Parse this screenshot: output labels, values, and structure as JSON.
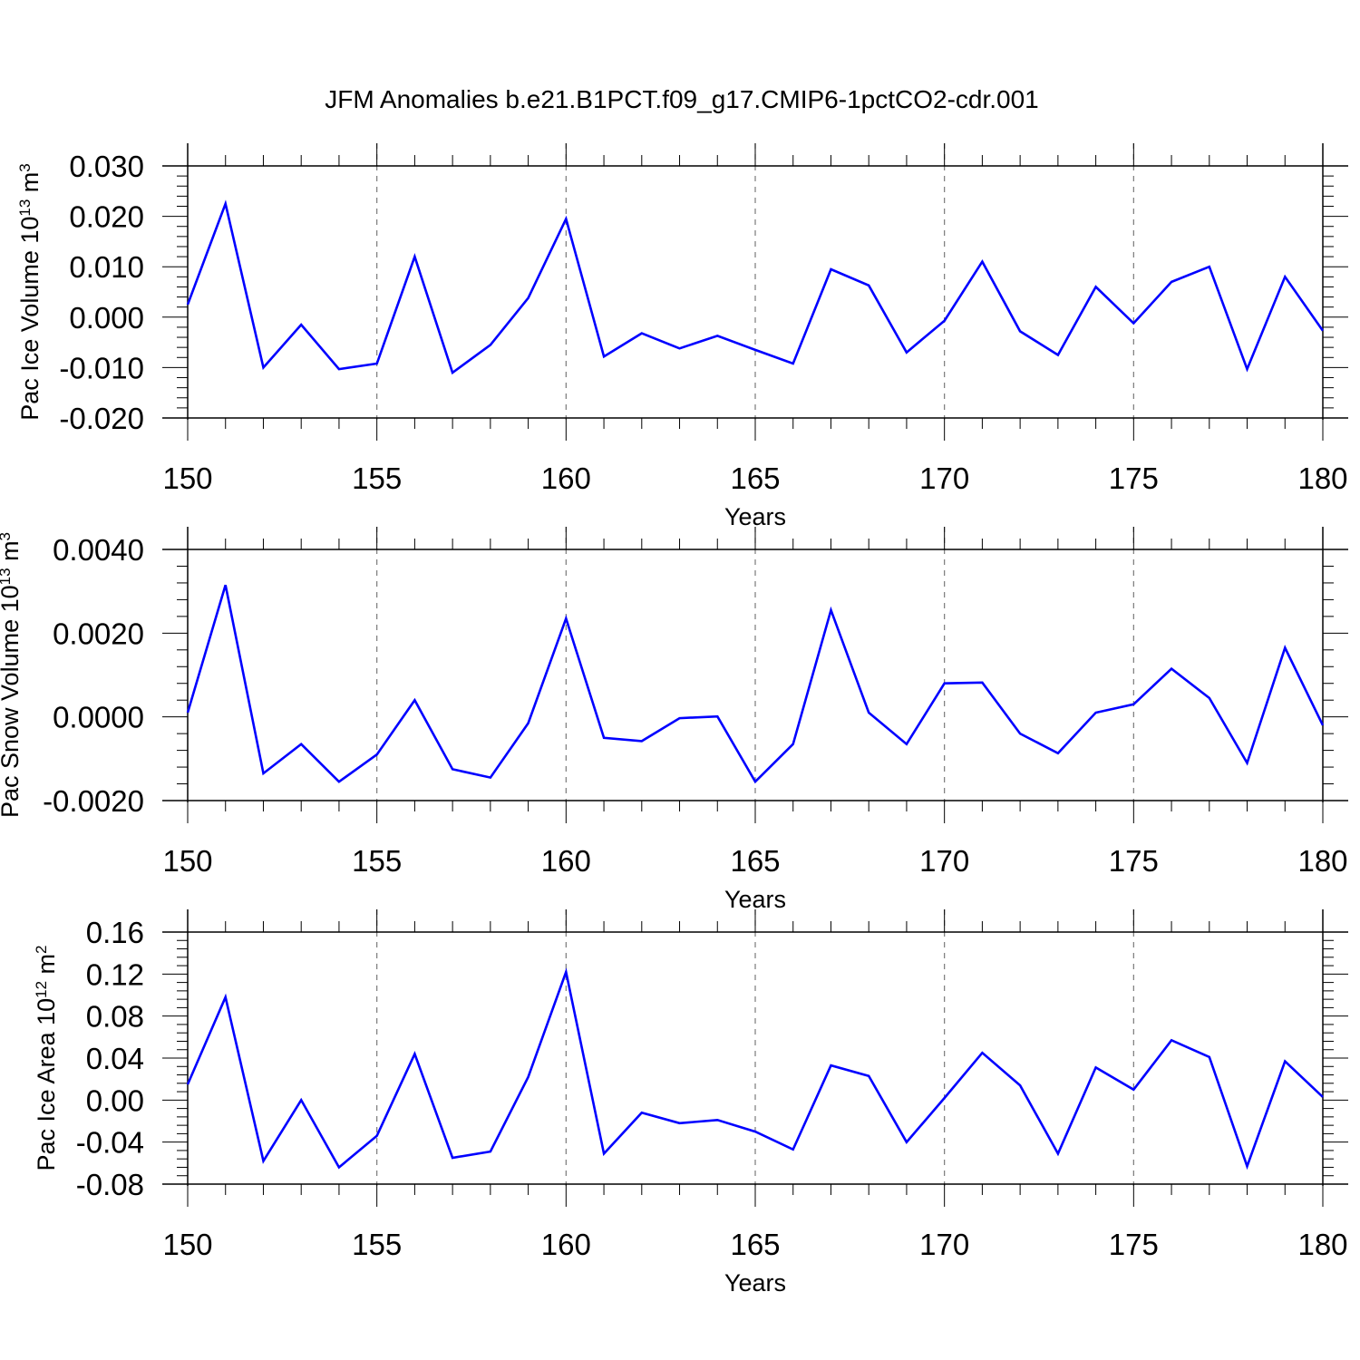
{
  "chart_data": {
    "title": "JFM Anomalies b.e21.B1PCT.f09_g17.CMIP6-1pctCO2-cdr.001",
    "line_color": "#0000ff",
    "grid": "vertical dashed at major x ticks",
    "panels": [
      {
        "type": "line",
        "ylabel": {
          "base": "Pac Ice Volume 10",
          "exp": "13",
          "unit": " m",
          "unit_exp": "3"
        },
        "xlabel": "Years",
        "xlim": [
          150,
          180
        ],
        "ylim": [
          -0.02,
          0.03
        ],
        "x_ticks": [
          150,
          155,
          160,
          165,
          170,
          175,
          180
        ],
        "x_tick_labels": [
          "150",
          "155",
          "160",
          "165",
          "170",
          "175",
          "180"
        ],
        "y_ticks": [
          -0.02,
          -0.01,
          0.0,
          0.01,
          0.02,
          0.03
        ],
        "y_tick_labels": [
          "-0.020",
          "-0.010",
          "0.000",
          "0.010",
          "0.020",
          "0.030"
        ],
        "x": [
          150,
          151,
          152,
          153,
          154,
          155,
          156,
          157,
          158,
          159,
          160,
          161,
          162,
          163,
          164,
          165,
          166,
          167,
          168,
          169,
          170,
          171,
          172,
          173,
          174,
          175,
          176,
          177,
          178,
          179,
          180
        ],
        "y": [
          0.0025,
          0.0225,
          -0.01,
          -0.0015,
          -0.0103,
          -0.0092,
          0.012,
          -0.011,
          -0.0055,
          0.0038,
          0.0195,
          -0.0078,
          -0.0032,
          -0.0062,
          -0.0037,
          -0.0065,
          -0.0092,
          0.0095,
          0.0063,
          -0.007,
          -0.0007,
          0.011,
          -0.0028,
          -0.0075,
          0.006,
          -0.0012,
          0.007,
          0.01,
          -0.0103,
          0.008,
          -0.0027
        ]
      },
      {
        "type": "line",
        "ylabel": {
          "base": "Pac Snow Volume 10",
          "exp": "13",
          "unit": " m",
          "unit_exp": "3"
        },
        "xlabel": "Years",
        "xlim": [
          150,
          180
        ],
        "ylim": [
          -0.002,
          0.004
        ],
        "x_ticks": [
          150,
          155,
          160,
          165,
          170,
          175,
          180
        ],
        "x_tick_labels": [
          "150",
          "155",
          "160",
          "165",
          "170",
          "175",
          "180"
        ],
        "y_ticks": [
          -0.002,
          0.0,
          0.002,
          0.004
        ],
        "y_tick_labels": [
          "-0.0020",
          "0.0000",
          "0.0020",
          "0.0040"
        ],
        "x": [
          150,
          151,
          152,
          153,
          154,
          155,
          156,
          157,
          158,
          159,
          160,
          161,
          162,
          163,
          164,
          165,
          166,
          167,
          168,
          169,
          170,
          171,
          172,
          173,
          174,
          175,
          176,
          177,
          178,
          179,
          180
        ],
        "y": [
          0.0001,
          0.00315,
          -0.00135,
          -0.00065,
          -0.00155,
          -0.0009,
          0.0004,
          -0.00125,
          -0.00145,
          -0.00015,
          0.00235,
          -0.0005,
          -0.00058,
          -3e-05,
          1e-05,
          -0.00155,
          -0.00065,
          0.00255,
          0.0001,
          -0.00065,
          0.0008,
          0.00082,
          -0.0004,
          -0.00087,
          0.0001,
          0.0003,
          0.00115,
          0.00045,
          -0.0011,
          0.00165,
          -0.0002
        ]
      },
      {
        "type": "line",
        "ylabel": {
          "base": "Pac Ice Area 10",
          "exp": "12",
          "unit": " m",
          "unit_exp": "2"
        },
        "xlabel": "Years",
        "xlim": [
          150,
          180
        ],
        "ylim": [
          -0.08,
          0.16
        ],
        "x_ticks": [
          150,
          155,
          160,
          165,
          170,
          175,
          180
        ],
        "x_tick_labels": [
          "150",
          "155",
          "160",
          "165",
          "170",
          "175",
          "180"
        ],
        "y_ticks": [
          -0.08,
          -0.04,
          0.0,
          0.04,
          0.08,
          0.12,
          0.16
        ],
        "y_tick_labels": [
          "-0.08",
          "-0.04",
          "0.00",
          "0.04",
          "0.08",
          "0.12",
          "0.16"
        ],
        "x": [
          150,
          151,
          152,
          153,
          154,
          155,
          156,
          157,
          158,
          159,
          160,
          161,
          162,
          163,
          164,
          165,
          166,
          167,
          168,
          169,
          170,
          171,
          172,
          173,
          174,
          175,
          176,
          177,
          178,
          179,
          180
        ],
        "y": [
          0.015,
          0.098,
          -0.058,
          0.0,
          -0.064,
          -0.034,
          0.044,
          -0.055,
          -0.049,
          0.022,
          0.122,
          -0.051,
          -0.012,
          -0.022,
          -0.019,
          -0.03,
          -0.047,
          0.033,
          0.023,
          -0.04,
          0.002,
          0.045,
          0.014,
          -0.051,
          0.031,
          0.01,
          0.057,
          0.041,
          -0.063,
          0.037,
          0.003
        ]
      }
    ]
  }
}
